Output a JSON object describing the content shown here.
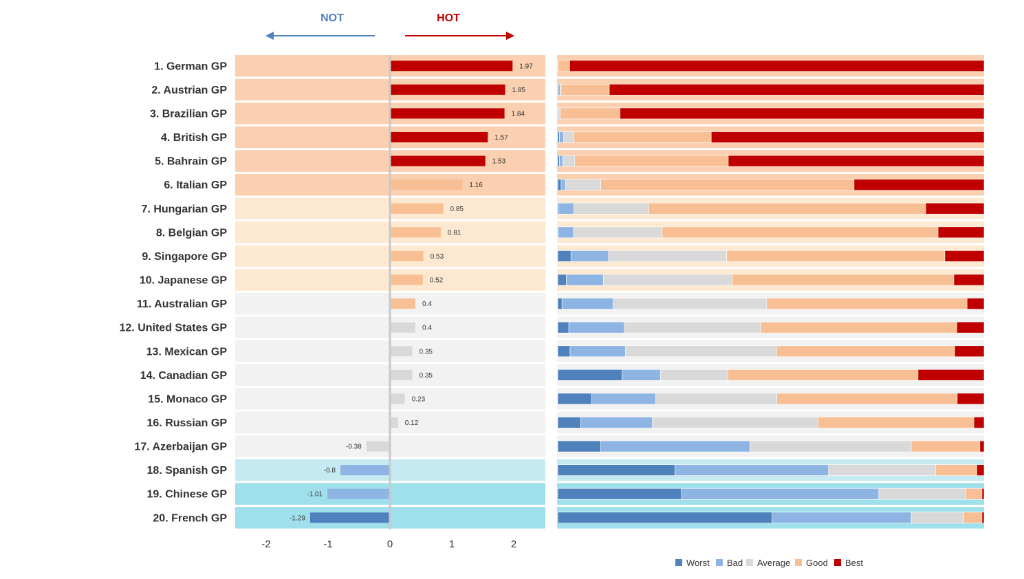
{
  "header": {
    "not_label": "NOT",
    "hot_label": "HOT"
  },
  "colors": {
    "hot": "#c00000",
    "good": "#f8bf94",
    "average": "#d9d9d9",
    "bad": "#8eb4e3",
    "worst": "#4f81bd",
    "not_label": "#4f81bd",
    "hot_label": "#c00000",
    "band_hot": "#fbd0b0",
    "band_warm": "#fde9d1",
    "band_neutral": "#f2f2f2",
    "band_cool": "#c5eaf2",
    "band_cold": "#a0e0ec"
  },
  "chart_data": [
    {
      "type": "bar",
      "orientation": "horizontal",
      "title": "",
      "categories": [
        "1. German GP",
        "2. Austrian GP",
        "3. Brazilian GP",
        "4. British GP",
        "5. Bahrain GP",
        "6. Italian GP",
        "7. Hungarian GP",
        "8. Belgian GP",
        "9. Singapore GP",
        "10. Japanese GP",
        "11. Australian GP",
        "12. United States GP",
        "13. Mexican GP",
        "14. Canadian GP",
        "15. Monaco GP",
        "16. Russian GP",
        "17. Azerbaijan GP",
        "18. Spanish GP",
        "19. Chinese GP",
        "20. French GP"
      ],
      "values": [
        1.97,
        1.85,
        1.84,
        1.57,
        1.53,
        1.16,
        0.85,
        0.81,
        0.53,
        0.52,
        0.4,
        0.4,
        0.35,
        0.35,
        0.23,
        0.12,
        -0.38,
        -0.8,
        -1.01,
        -1.29
      ],
      "value_labels": [
        "1.97",
        "1.85",
        "1.84",
        "1.57",
        "1.53",
        "1.16",
        "0.85",
        "0.81",
        "0.53",
        "0.52",
        "0.4",
        "0.4",
        "0.35",
        "0.35",
        "0.23",
        "0.12",
        "-0.38",
        "-0.8",
        "-1.01",
        "-1.29"
      ],
      "bar_category": [
        "hot",
        "hot",
        "hot",
        "hot",
        "hot",
        "good",
        "good",
        "good",
        "good",
        "good",
        "good",
        "average",
        "average",
        "average",
        "average",
        "average",
        "average",
        "bad",
        "bad",
        "worst"
      ],
      "band_category": [
        "band_hot",
        "band_hot",
        "band_hot",
        "band_hot",
        "band_hot",
        "band_hot",
        "band_warm",
        "band_warm",
        "band_warm",
        "band_warm",
        "band_neutral",
        "band_neutral",
        "band_neutral",
        "band_neutral",
        "band_neutral",
        "band_neutral",
        "band_neutral",
        "band_cool",
        "band_cold",
        "band_cold"
      ],
      "xlim": [
        -2.5,
        2.5
      ],
      "xticks": [
        -2,
        -1,
        0,
        1,
        2
      ],
      "xtick_labels": [
        "-2",
        "-1",
        "0",
        "1",
        "2"
      ],
      "xlabel": "",
      "ylabel": ""
    },
    {
      "type": "bar",
      "orientation": "horizontal",
      "stacked": true,
      "normalized": true,
      "title": "",
      "categories": [
        "1. German GP",
        "2. Austrian GP",
        "3. Brazilian GP",
        "4. British GP",
        "5. Bahrain GP",
        "6. Italian GP",
        "7. Hungarian GP",
        "8. Belgian GP",
        "9. Singapore GP",
        "10. Japanese GP",
        "11. Australian GP",
        "12. United States GP",
        "13. Mexican GP",
        "14. Canadian GP",
        "15. Monaco GP",
        "16. Russian GP",
        "17. Azerbaijan GP",
        "18. Spanish GP",
        "19. Chinese GP",
        "20. French GP"
      ],
      "series": [
        {
          "name": "Worst",
          "color_key": "worst",
          "values": [
            0.0,
            0.2,
            0.0,
            0.4,
            0.4,
            0.8,
            0.3,
            0.2,
            3.1,
            2.0,
            1.0,
            2.6,
            2.9,
            15.1,
            8.0,
            5.4,
            10.1,
            27.5,
            29.0,
            50.3
          ]
        },
        {
          "name": "Bad",
          "color_key": "bad",
          "values": [
            0.0,
            0.4,
            0.2,
            1.0,
            0.8,
            1.0,
            3.5,
            3.5,
            8.8,
            8.7,
            12.0,
            13.0,
            13.0,
            9.0,
            15.0,
            16.8,
            35.0,
            36.0,
            46.3,
            32.6
          ]
        },
        {
          "name": "Average",
          "color_key": "average",
          "values": [
            0.1,
            0.2,
            0.4,
            2.4,
            2.8,
            8.3,
            17.5,
            20.8,
            27.7,
            30.2,
            36.0,
            32.0,
            35.4,
            15.8,
            28.4,
            38.8,
            37.8,
            25.1,
            20.4,
            12.3
          ]
        },
        {
          "name": "Good",
          "color_key": "good",
          "values": [
            2.7,
            11.3,
            14.0,
            32.2,
            36.0,
            59.4,
            65.0,
            64.7,
            51.2,
            52.0,
            47.0,
            46.0,
            41.8,
            44.6,
            42.3,
            36.6,
            16.1,
            9.7,
            3.8,
            4.3
          ]
        },
        {
          "name": "Best",
          "color_key": "hot",
          "values": [
            97.2,
            87.9,
            85.4,
            64.0,
            60.0,
            30.5,
            13.7,
            10.8,
            9.2,
            7.1,
            4.0,
            6.4,
            6.9,
            15.5,
            6.3,
            2.4,
            1.0,
            1.7,
            0.5,
            0.5
          ]
        }
      ],
      "legend": [
        "Worst",
        "Bad",
        "Average",
        "Good",
        "Best"
      ],
      "legend_position": "bottom-right"
    }
  ]
}
